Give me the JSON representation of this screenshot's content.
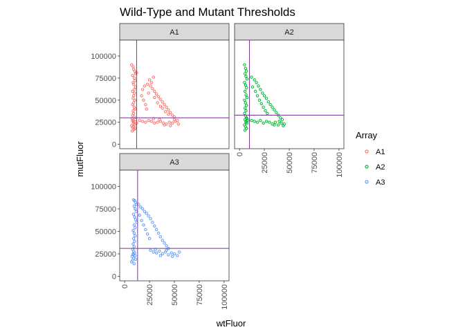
{
  "chart_data": {
    "type": "scatter",
    "title": "Wild-Type and Mutant Thresholds",
    "xlabel": "wtFluor",
    "ylabel": "mutFluor",
    "x_ticks": [
      0,
      25000,
      50000,
      75000,
      100000
    ],
    "x_tick_labels": [
      "0",
      "25000",
      "50000",
      "75000",
      "100000"
    ],
    "y_ticks": [
      0,
      25000,
      50000,
      75000,
      100000
    ],
    "y_tick_labels": [
      "0",
      "25000",
      "50000",
      "75000",
      "100000"
    ],
    "xlim": [
      -5000,
      105000
    ],
    "ylim": [
      -5000,
      118000
    ],
    "grid": false,
    "threshold_color": "#7b3294",
    "legend": {
      "title": "Array",
      "placement": "right",
      "entries": [
        {
          "label": "A1",
          "color": "#F8766D"
        },
        {
          "label": "A2",
          "color": "#00BA38"
        },
        {
          "label": "A3",
          "color": "#619CFF"
        }
      ]
    },
    "panels": [
      {
        "name": "A1",
        "color": "#F8766D",
        "x_threshold": 12000,
        "y_threshold": 30000,
        "points": [
          [
            7000,
            90000
          ],
          [
            8500,
            88000
          ],
          [
            9000,
            85000
          ],
          [
            10000,
            83000
          ],
          [
            11000,
            80000
          ],
          [
            12000,
            81000
          ],
          [
            8000,
            78000
          ],
          [
            9500,
            75000
          ],
          [
            10500,
            72000
          ],
          [
            8500,
            70000
          ],
          [
            9000,
            68000
          ],
          [
            11000,
            65000
          ],
          [
            9500,
            62000
          ],
          [
            8000,
            60000
          ],
          [
            10000,
            58000
          ],
          [
            9000,
            55000
          ],
          [
            8500,
            52000
          ],
          [
            10000,
            50000
          ],
          [
            9000,
            47000
          ],
          [
            8000,
            45000
          ],
          [
            9500,
            42000
          ],
          [
            10500,
            40000
          ],
          [
            8500,
            38000
          ],
          [
            9000,
            35000
          ],
          [
            8000,
            33000
          ],
          [
            9500,
            31000
          ],
          [
            7500,
            29000
          ],
          [
            8000,
            27000
          ],
          [
            9000,
            25000
          ],
          [
            8500,
            23000
          ],
          [
            7000,
            21000
          ],
          [
            8000,
            19000
          ],
          [
            9500,
            17000
          ],
          [
            7500,
            15000
          ],
          [
            9000,
            20000
          ],
          [
            10000,
            22000
          ],
          [
            8500,
            26000
          ],
          [
            11000,
            28000
          ],
          [
            12000,
            24000
          ],
          [
            10500,
            18000
          ],
          [
            18000,
            62000
          ],
          [
            20000,
            66000
          ],
          [
            23000,
            68000
          ],
          [
            26000,
            66000
          ],
          [
            28000,
            63000
          ],
          [
            30000,
            60000
          ],
          [
            32000,
            57000
          ],
          [
            34000,
            54000
          ],
          [
            36000,
            51000
          ],
          [
            38000,
            48000
          ],
          [
            40000,
            45000
          ],
          [
            42000,
            42000
          ],
          [
            44000,
            39000
          ],
          [
            46000,
            36000
          ],
          [
            48000,
            33000
          ],
          [
            50000,
            31000
          ],
          [
            17000,
            55000
          ],
          [
            19000,
            50000
          ],
          [
            21000,
            45000
          ],
          [
            22000,
            40000
          ],
          [
            24000,
            58000
          ],
          [
            27000,
            70000
          ],
          [
            29000,
            76000
          ],
          [
            25000,
            73000
          ],
          [
            30000,
            53000
          ],
          [
            33000,
            47000
          ],
          [
            36000,
            43000
          ],
          [
            38000,
            41000
          ],
          [
            41000,
            37000
          ],
          [
            44000,
            34000
          ],
          [
            15000,
            27000
          ],
          [
            18000,
            26000
          ],
          [
            21000,
            25000
          ],
          [
            24000,
            27000
          ],
          [
            27000,
            26000
          ],
          [
            30000,
            24000
          ],
          [
            33000,
            25000
          ],
          [
            36000,
            26000
          ],
          [
            39000,
            24000
          ],
          [
            42000,
            23000
          ],
          [
            45000,
            25000
          ],
          [
            48000,
            24000
          ],
          [
            51000,
            26000
          ],
          [
            54000,
            23000
          ],
          [
            40000,
            22000
          ],
          [
            35000,
            28000
          ],
          [
            29000,
            29000
          ],
          [
            50000,
            28000
          ],
          [
            46000,
            21000
          ],
          [
            53000,
            27000
          ]
        ]
      },
      {
        "name": "A2",
        "color": "#00BA38",
        "x_threshold": 10000,
        "y_threshold": 33000,
        "points": [
          [
            5000,
            90000
          ],
          [
            6000,
            86000
          ],
          [
            7000,
            83000
          ],
          [
            5500,
            80000
          ],
          [
            6500,
            77000
          ],
          [
            7500,
            74000
          ],
          [
            5000,
            70000
          ],
          [
            6000,
            67000
          ],
          [
            7000,
            64000
          ],
          [
            5500,
            60000
          ],
          [
            6500,
            56000
          ],
          [
            7500,
            53000
          ],
          [
            5000,
            50000
          ],
          [
            6000,
            47000
          ],
          [
            7000,
            44000
          ],
          [
            5500,
            41000
          ],
          [
            6500,
            38000
          ],
          [
            5000,
            35000
          ],
          [
            6000,
            32000
          ],
          [
            7000,
            30000
          ],
          [
            5500,
            28000
          ],
          [
            6500,
            26000
          ],
          [
            7500,
            24000
          ],
          [
            5000,
            22000
          ],
          [
            6000,
            20000
          ],
          [
            7000,
            18000
          ],
          [
            5500,
            16000
          ],
          [
            6500,
            25000
          ],
          [
            8000,
            27000
          ],
          [
            7500,
            29000
          ],
          [
            12000,
            76000
          ],
          [
            15000,
            73000
          ],
          [
            17000,
            70000
          ],
          [
            19000,
            66000
          ],
          [
            21000,
            62000
          ],
          [
            23000,
            58000
          ],
          [
            25000,
            55000
          ],
          [
            27000,
            52000
          ],
          [
            29000,
            48000
          ],
          [
            31000,
            45000
          ],
          [
            33000,
            42000
          ],
          [
            35000,
            39000
          ],
          [
            37000,
            36000
          ],
          [
            39000,
            33000
          ],
          [
            41000,
            30000
          ],
          [
            43000,
            28000
          ],
          [
            13000,
            65000
          ],
          [
            16000,
            60000
          ],
          [
            18000,
            55000
          ],
          [
            20000,
            50000
          ],
          [
            22000,
            46000
          ],
          [
            24000,
            42000
          ],
          [
            26000,
            38000
          ],
          [
            28000,
            35000
          ],
          [
            12000,
            27000
          ],
          [
            15000,
            26000
          ],
          [
            18000,
            25000
          ],
          [
            21000,
            27000
          ],
          [
            24000,
            24000
          ],
          [
            27000,
            26000
          ],
          [
            30000,
            25000
          ],
          [
            33000,
            23000
          ],
          [
            36000,
            25000
          ],
          [
            39000,
            22000
          ],
          [
            42000,
            24000
          ],
          [
            44000,
            21000
          ],
          [
            40000,
            26000
          ],
          [
            35000,
            22000
          ],
          [
            45000,
            23000
          ]
        ]
      },
      {
        "name": "A3",
        "color": "#619CFF",
        "x_threshold": 13000,
        "y_threshold": 31000,
        "points": [
          [
            9000,
            85000
          ],
          [
            10000,
            84000
          ],
          [
            11000,
            82000
          ],
          [
            12000,
            80000
          ],
          [
            9500,
            78000
          ],
          [
            10500,
            75000
          ],
          [
            11500,
            72000
          ],
          [
            9000,
            69000
          ],
          [
            10000,
            66000
          ],
          [
            11000,
            63000
          ],
          [
            12000,
            60000
          ],
          [
            9500,
            57000
          ],
          [
            10500,
            54000
          ],
          [
            8500,
            51000
          ],
          [
            9500,
            48000
          ],
          [
            10500,
            45000
          ],
          [
            9000,
            42000
          ],
          [
            10000,
            39000
          ],
          [
            8500,
            36000
          ],
          [
            9500,
            33000
          ],
          [
            8000,
            30000
          ],
          [
            9000,
            28000
          ],
          [
            10000,
            26000
          ],
          [
            8500,
            24000
          ],
          [
            7500,
            22000
          ],
          [
            9000,
            20000
          ],
          [
            8000,
            18000
          ],
          [
            7000,
            16000
          ],
          [
            9500,
            14000
          ],
          [
            8500,
            25000
          ],
          [
            10500,
            23000
          ],
          [
            11000,
            19000
          ],
          [
            14000,
            80000
          ],
          [
            16000,
            77000
          ],
          [
            18000,
            75000
          ],
          [
            20000,
            72000
          ],
          [
            22000,
            70000
          ],
          [
            24000,
            67000
          ],
          [
            26000,
            64000
          ],
          [
            28000,
            60000
          ],
          [
            30000,
            56000
          ],
          [
            32000,
            52000
          ],
          [
            34000,
            48000
          ],
          [
            36000,
            44000
          ],
          [
            38000,
            40000
          ],
          [
            40000,
            37000
          ],
          [
            42000,
            34000
          ],
          [
            44000,
            31000
          ],
          [
            15000,
            68000
          ],
          [
            17000,
            62000
          ],
          [
            19000,
            57000
          ],
          [
            21000,
            52000
          ],
          [
            23000,
            47000
          ],
          [
            25000,
            42000
          ],
          [
            26000,
            29000
          ],
          [
            29000,
            27000
          ],
          [
            32000,
            26000
          ],
          [
            35000,
            28000
          ],
          [
            38000,
            25000
          ],
          [
            41000,
            27000
          ],
          [
            44000,
            24000
          ],
          [
            47000,
            26000
          ],
          [
            50000,
            25000
          ],
          [
            53000,
            23000
          ],
          [
            36000,
            23000
          ],
          [
            42000,
            29000
          ],
          [
            48000,
            22000
          ],
          [
            55000,
            27000
          ],
          [
            31000,
            30000
          ]
        ]
      }
    ]
  }
}
